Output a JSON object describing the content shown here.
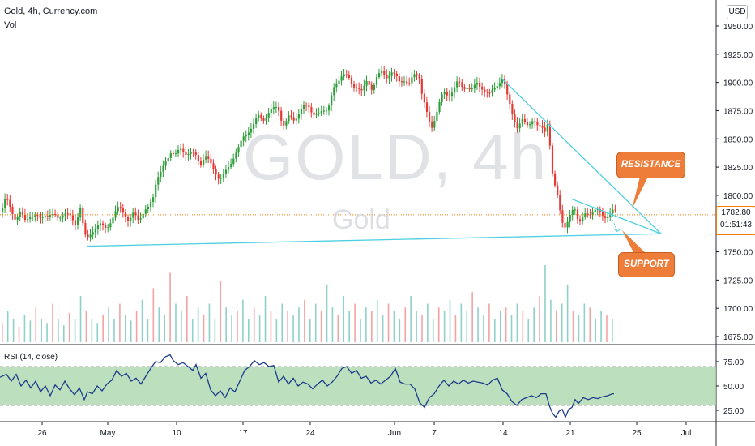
{
  "header": {
    "title": "Gold, 4h, Currency.com",
    "volume_label": "Vol",
    "rsi_label": "RSI (14, close)"
  },
  "currency_button": "USD",
  "watermark": {
    "symbol": "GOLD, 4h",
    "name": "Gold"
  },
  "price_tag": {
    "price": "1782.80",
    "countdown": "01:51:43"
  },
  "annotations": {
    "resistance": "RESISTANCE",
    "support": "SUPPORT"
  },
  "colors": {
    "up": "#26a69a",
    "down": "#ef5350",
    "candle_up": "#2e9e3a",
    "candle_down": "#e53935",
    "trendline": "#4dd0e1",
    "callout": "#ef7d3a",
    "rsi_line": "#1e3c8c",
    "rsi_band": "#a5d6a7"
  },
  "chart_data": [
    {
      "type": "candlestick",
      "title": "Gold, 4h, Currency.com",
      "y_axis_ticks": [
        "1950.00",
        "1925.00",
        "1900.00",
        "1875.00",
        "1850.00",
        "1825.00",
        "1800.00",
        "1775.00",
        "1750.00",
        "1725.00",
        "1700.00",
        "1675.00"
      ],
      "x_axis_ticks": [
        "26",
        "May",
        "10",
        "17",
        "24",
        "Jun",
        "7",
        "14",
        "21",
        "25",
        "Jul"
      ],
      "ylim": [
        1665,
        1958
      ],
      "last_price": 1782.8,
      "close_path": [
        [
          0,
          1785
        ],
        [
          6,
          1797
        ],
        [
          12,
          1788
        ],
        [
          18,
          1780
        ],
        [
          24,
          1784
        ],
        [
          30,
          1777
        ],
        [
          36,
          1783
        ],
        [
          42,
          1782
        ],
        [
          48,
          1778
        ],
        [
          54,
          1784
        ],
        [
          62,
          1782
        ],
        [
          70,
          1780
        ],
        [
          78,
          1785
        ],
        [
          86,
          1780
        ],
        [
          92,
          1775
        ],
        [
          98,
          1790
        ],
        [
          102,
          1770
        ],
        [
          106,
          1758
        ],
        [
          108,
          1764
        ],
        [
          114,
          1770
        ],
        [
          122,
          1773
        ],
        [
          130,
          1772
        ],
        [
          138,
          1779
        ],
        [
          146,
          1790
        ],
        [
          152,
          1786
        ],
        [
          158,
          1775
        ],
        [
          164,
          1784
        ],
        [
          170,
          1780
        ],
        [
          176,
          1784
        ],
        [
          182,
          1788
        ],
        [
          188,
          1800
        ],
        [
          192,
          1815
        ],
        [
          198,
          1820
        ],
        [
          204,
          1830
        ],
        [
          210,
          1840
        ],
        [
          216,
          1836
        ],
        [
          222,
          1840
        ],
        [
          228,
          1838
        ],
        [
          234,
          1838
        ],
        [
          240,
          1835
        ],
        [
          246,
          1828
        ],
        [
          252,
          1836
        ],
        [
          258,
          1828
        ],
        [
          264,
          1822
        ],
        [
          270,
          1815
        ],
        [
          276,
          1818
        ],
        [
          282,
          1826
        ],
        [
          288,
          1836
        ],
        [
          294,
          1842
        ],
        [
          300,
          1852
        ],
        [
          306,
          1858
        ],
        [
          312,
          1862
        ],
        [
          318,
          1870
        ],
        [
          324,
          1868
        ],
        [
          330,
          1872
        ],
        [
          336,
          1876
        ],
        [
          342,
          1880
        ],
        [
          346,
          1868
        ],
        [
          350,
          1860
        ],
        [
          356,
          1870
        ],
        [
          362,
          1868
        ],
        [
          368,
          1872
        ],
        [
          374,
          1878
        ],
        [
          380,
          1880
        ],
        [
          386,
          1872
        ],
        [
          392,
          1870
        ],
        [
          398,
          1876
        ],
        [
          404,
          1878
        ],
        [
          410,
          1892
        ],
        [
          416,
          1900
        ],
        [
          422,
          1910
        ],
        [
          428,
          1905
        ],
        [
          434,
          1895
        ],
        [
          440,
          1898
        ],
        [
          446,
          1892
        ],
        [
          452,
          1900
        ],
        [
          458,
          1895
        ],
        [
          464,
          1905
        ],
        [
          470,
          1908
        ],
        [
          476,
          1905
        ],
        [
          482,
          1910
        ],
        [
          488,
          1904
        ],
        [
          492,
          1900
        ],
        [
          498,
          1903
        ],
        [
          504,
          1898
        ],
        [
          510,
          1906
        ],
        [
          516,
          1908
        ],
        [
          520,
          1890
        ],
        [
          524,
          1878
        ],
        [
          528,
          1865
        ],
        [
          532,
          1860
        ],
        [
          536,
          1870
        ],
        [
          540,
          1880
        ],
        [
          546,
          1890
        ],
        [
          552,
          1888
        ],
        [
          558,
          1894
        ],
        [
          564,
          1900
        ],
        [
          570,
          1895
        ],
        [
          576,
          1897
        ],
        [
          582,
          1893
        ],
        [
          588,
          1899
        ],
        [
          594,
          1896
        ],
        [
          600,
          1890
        ],
        [
          604,
          1888
        ],
        [
          608,
          1895
        ],
        [
          614,
          1900
        ],
        [
          620,
          1903
        ],
        [
          624,
          1890
        ],
        [
          628,
          1882
        ],
        [
          632,
          1872
        ],
        [
          638,
          1858
        ],
        [
          644,
          1866
        ],
        [
          650,
          1864
        ],
        [
          656,
          1866
        ],
        [
          662,
          1860
        ],
        [
          668,
          1862
        ],
        [
          672,
          1858
        ],
        [
          676,
          1866
        ],
        [
          678,
          1840
        ],
        [
          680,
          1820
        ],
        [
          684,
          1808
        ],
        [
          688,
          1800
        ],
        [
          692,
          1780
        ],
        [
          696,
          1770
        ],
        [
          700,
          1775
        ],
        [
          704,
          1785
        ],
        [
          708,
          1792
        ],
        [
          712,
          1780
        ],
        [
          716,
          1775
        ],
        [
          720,
          1782
        ],
        [
          726,
          1784
        ],
        [
          732,
          1788
        ],
        [
          738,
          1785
        ],
        [
          744,
          1781
        ],
        [
          750,
          1783
        ],
        [
          756,
          1786
        ],
        [
          760,
          1784
        ]
      ],
      "trendlines": [
        {
          "name": "support",
          "from": {
            "x": "Apr 29",
            "y": 1755
          },
          "to": {
            "x": "Jun 27",
            "y": 1766
          }
        },
        {
          "name": "resistance-upper",
          "from": {
            "x": "Jun 11",
            "y": 1903
          },
          "to": {
            "x": "Jun 27",
            "y": 1766
          }
        },
        {
          "name": "resistance-lower",
          "from": {
            "x": "Jun 20",
            "y": 1797
          },
          "to": {
            "x": "Jun 27",
            "y": 1766
          }
        }
      ]
    },
    {
      "type": "bar",
      "title": "Vol",
      "series_description": "volume bars colored by candle direction",
      "values_relative": [
        0.25,
        0.4,
        0.3,
        0.2,
        0.35,
        0.28,
        0.45,
        0.3,
        0.25,
        0.5,
        0.3,
        0.22,
        0.38,
        0.3,
        0.6,
        0.4,
        0.3,
        0.25,
        0.35,
        0.45,
        0.3,
        0.5,
        0.35,
        0.28,
        0.4,
        0.55,
        0.3,
        0.7,
        0.45,
        0.35,
        0.9,
        0.5,
        0.4,
        0.6,
        0.3,
        0.45,
        0.35,
        0.5,
        0.3,
        0.8,
        0.45,
        0.35,
        0.4,
        0.55,
        0.3,
        0.45,
        0.35,
        0.6,
        0.4,
        0.3,
        0.5,
        0.4,
        0.35,
        0.45,
        0.55,
        0.3,
        0.5,
        0.4,
        0.75,
        0.45,
        0.35,
        0.6,
        0.4,
        0.5,
        0.3,
        0.45,
        0.4,
        0.55,
        0.35,
        0.5,
        0.4,
        0.3,
        0.45,
        0.6,
        0.4,
        0.35,
        0.5,
        0.3,
        0.45,
        0.4,
        0.55,
        0.35,
        0.5,
        0.4,
        0.65,
        0.45,
        0.35,
        0.5,
        0.3,
        0.4,
        0.45,
        0.35,
        0.5,
        0.4,
        0.3,
        0.45,
        0.6,
        1.0,
        0.55,
        0.4,
        0.5,
        0.75,
        0.4,
        0.35,
        0.5,
        0.45,
        0.3,
        0.4,
        0.35,
        0.3
      ]
    },
    {
      "type": "line",
      "title": "RSI (14, close)",
      "y_axis_ticks": [
        "75.00",
        "50.00",
        "25.00"
      ],
      "ylim": [
        15,
        90
      ],
      "band": [
        30,
        70
      ],
      "values": [
        [
          0,
          59
        ],
        [
          8,
          62
        ],
        [
          14,
          55
        ],
        [
          20,
          62
        ],
        [
          26,
          50
        ],
        [
          32,
          56
        ],
        [
          38,
          48
        ],
        [
          44,
          55
        ],
        [
          50,
          44
        ],
        [
          56,
          50
        ],
        [
          62,
          40
        ],
        [
          68,
          51
        ],
        [
          74,
          46
        ],
        [
          80,
          55
        ],
        [
          86,
          47
        ],
        [
          92,
          41
        ],
        [
          98,
          48
        ],
        [
          104,
          36
        ],
        [
          108,
          44
        ],
        [
          114,
          42
        ],
        [
          120,
          50
        ],
        [
          126,
          45
        ],
        [
          132,
          52
        ],
        [
          138,
          56
        ],
        [
          144,
          66
        ],
        [
          150,
          60
        ],
        [
          156,
          63
        ],
        [
          162,
          55
        ],
        [
          168,
          58
        ],
        [
          174,
          52
        ],
        [
          180,
          60
        ],
        [
          186,
          68
        ],
        [
          192,
          75
        ],
        [
          198,
          74
        ],
        [
          204,
          80
        ],
        [
          210,
          82
        ],
        [
          214,
          76
        ],
        [
          220,
          72
        ],
        [
          226,
          74
        ],
        [
          232,
          70
        ],
        [
          238,
          66
        ],
        [
          242,
          72
        ],
        [
          248,
          58
        ],
        [
          254,
          63
        ],
        [
          260,
          46
        ],
        [
          266,
          40
        ],
        [
          272,
          45
        ],
        [
          278,
          38
        ],
        [
          284,
          48
        ],
        [
          290,
          44
        ],
        [
          296,
          55
        ],
        [
          302,
          66
        ],
        [
          308,
          70
        ],
        [
          314,
          76
        ],
        [
          320,
          72
        ],
        [
          326,
          74
        ],
        [
          332,
          70
        ],
        [
          338,
          71
        ],
        [
          344,
          54
        ],
        [
          350,
          60
        ],
        [
          356,
          52
        ],
        [
          362,
          58
        ],
        [
          368,
          50
        ],
        [
          374,
          54
        ],
        [
          380,
          52
        ],
        [
          386,
          47
        ],
        [
          392,
          52
        ],
        [
          398,
          56
        ],
        [
          404,
          50
        ],
        [
          410,
          54
        ],
        [
          416,
          60
        ],
        [
          422,
          68
        ],
        [
          428,
          70
        ],
        [
          434,
          63
        ],
        [
          440,
          66
        ],
        [
          446,
          58
        ],
        [
          452,
          60
        ],
        [
          458,
          53
        ],
        [
          464,
          56
        ],
        [
          470,
          52
        ],
        [
          476,
          56
        ],
        [
          482,
          60
        ],
        [
          488,
          68
        ],
        [
          494,
          54
        ],
        [
          500,
          52
        ],
        [
          506,
          52
        ],
        [
          512,
          47
        ],
        [
          518,
          33
        ],
        [
          524,
          28
        ],
        [
          530,
          38
        ],
        [
          536,
          42
        ],
        [
          542,
          50
        ],
        [
          548,
          56
        ],
        [
          554,
          50
        ],
        [
          560,
          55
        ],
        [
          566,
          52
        ],
        [
          572,
          56
        ],
        [
          578,
          53
        ],
        [
          584,
          55
        ],
        [
          590,
          54
        ],
        [
          596,
          53
        ],
        [
          602,
          51
        ],
        [
          608,
          56
        ],
        [
          614,
          58
        ],
        [
          620,
          46
        ],
        [
          626,
          42
        ],
        [
          632,
          34
        ],
        [
          638,
          30
        ],
        [
          644,
          36
        ],
        [
          650,
          38
        ],
        [
          656,
          40
        ],
        [
          662,
          38
        ],
        [
          668,
          42
        ],
        [
          674,
          42
        ],
        [
          678,
          30
        ],
        [
          682,
          22
        ],
        [
          686,
          18
        ],
        [
          690,
          24
        ],
        [
          694,
          26
        ],
        [
          698,
          18
        ],
        [
          702,
          26
        ],
        [
          706,
          28
        ],
        [
          710,
          36
        ],
        [
          714,
          32
        ],
        [
          720,
          38
        ],
        [
          726,
          36
        ],
        [
          732,
          38
        ],
        [
          738,
          37
        ],
        [
          744,
          39
        ],
        [
          750,
          40
        ],
        [
          756,
          42
        ],
        [
          758,
          42
        ]
      ]
    }
  ]
}
